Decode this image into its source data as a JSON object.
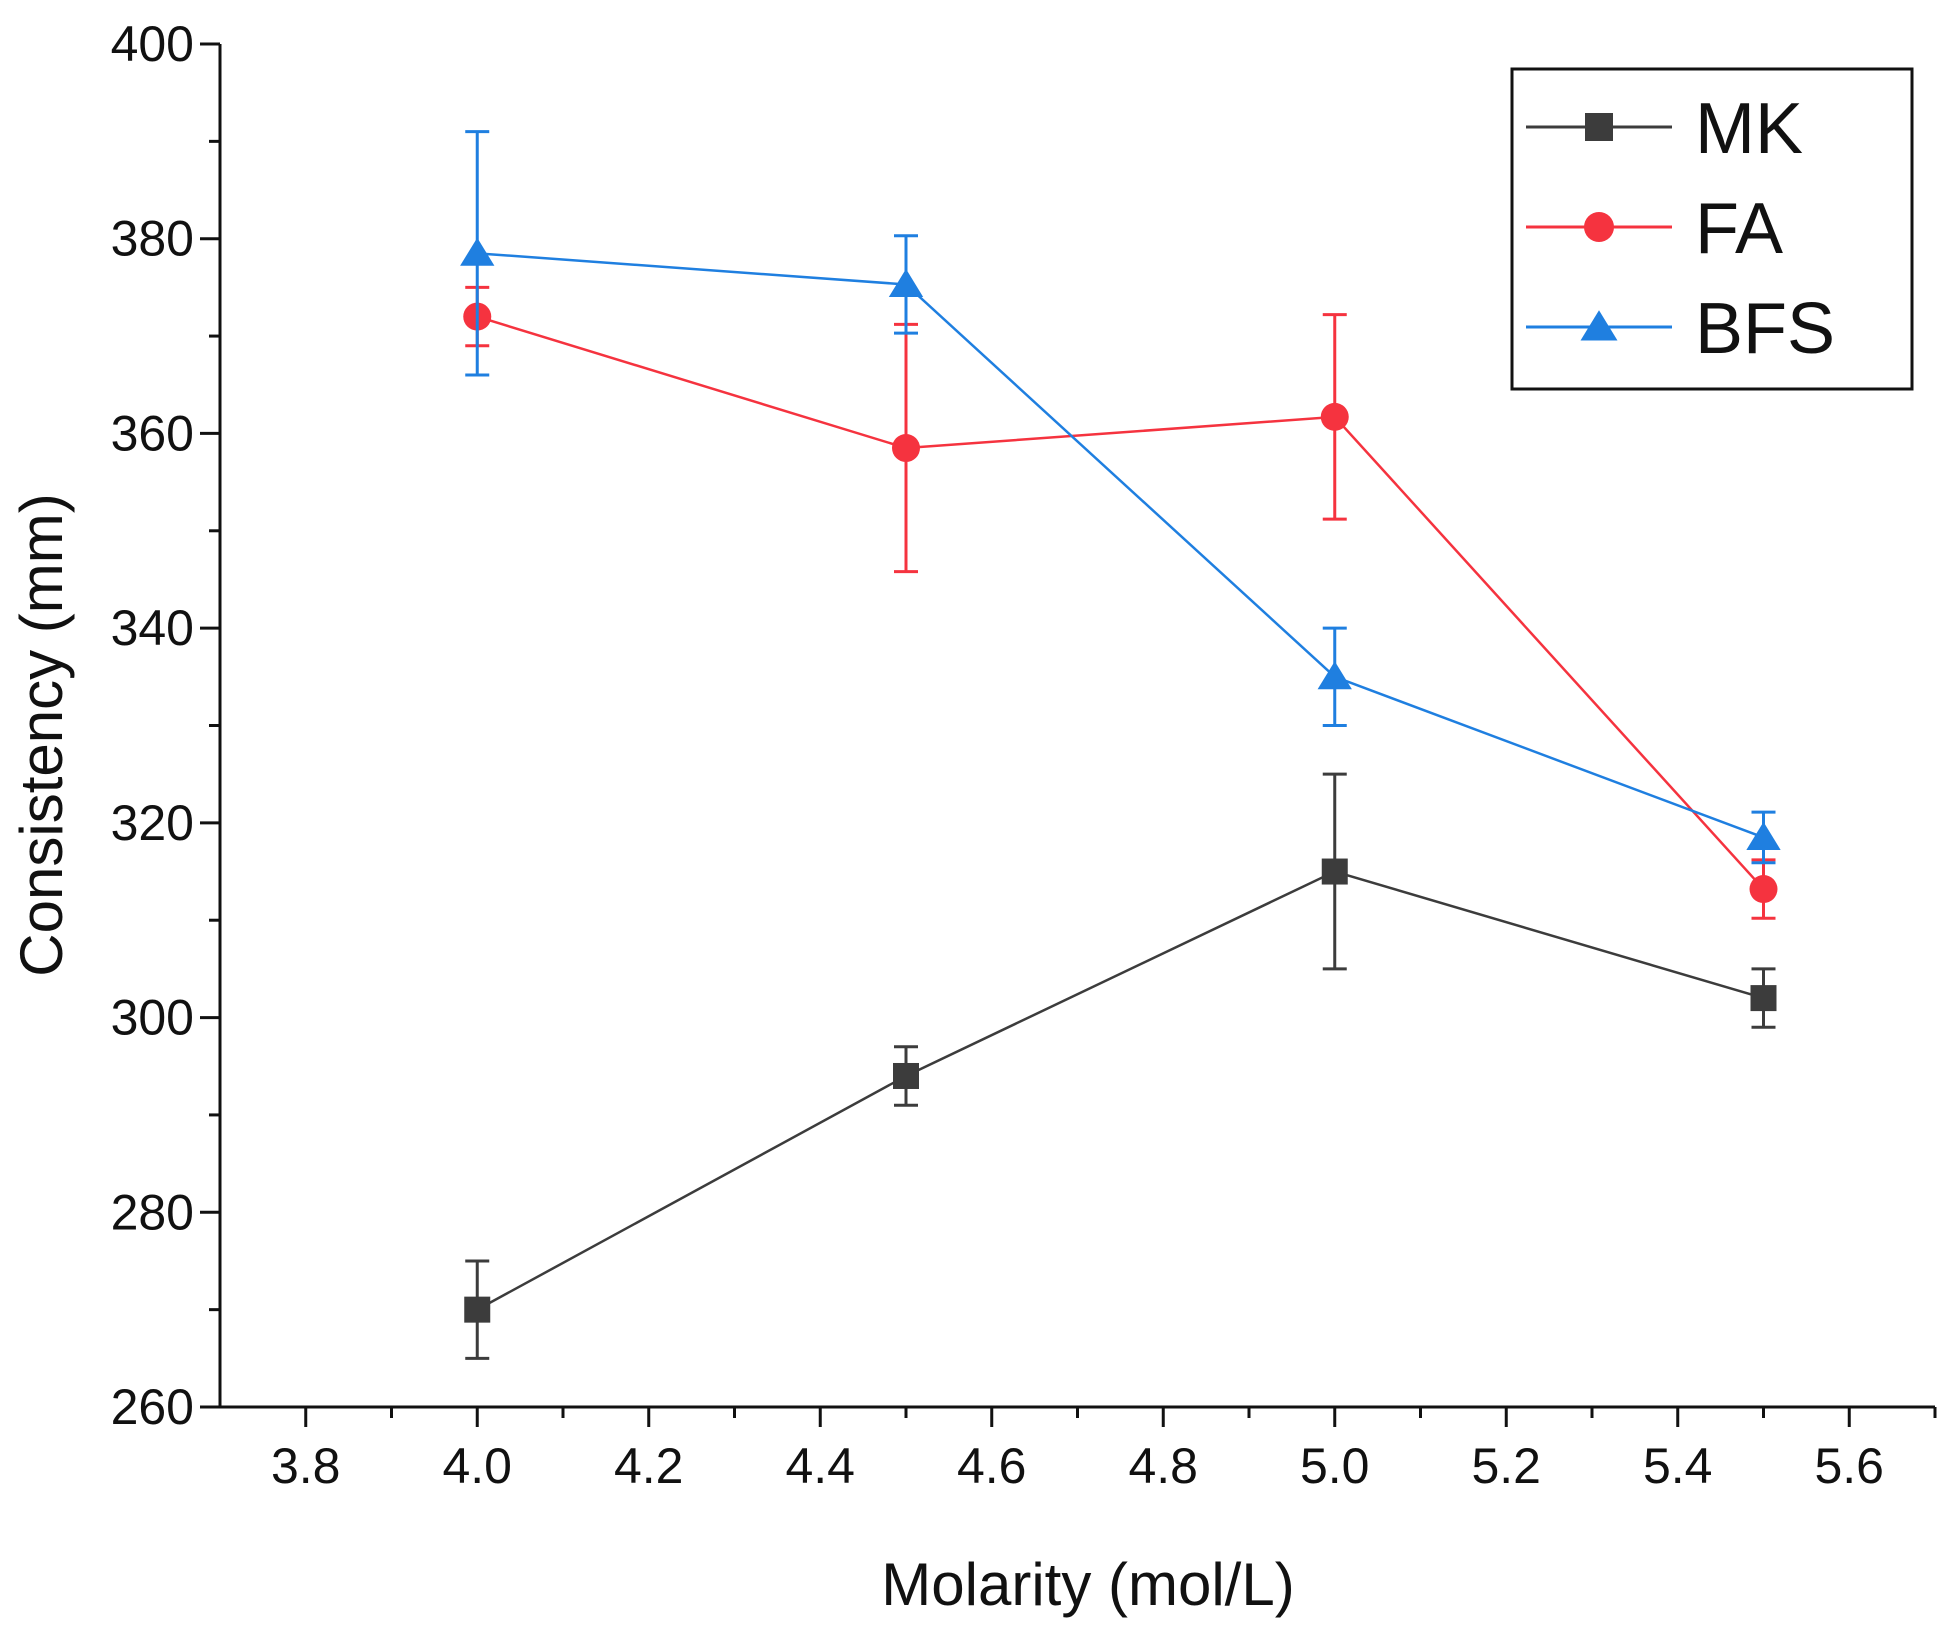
{
  "chart_data": {
    "type": "line",
    "title": "",
    "xlabel": "Molarity (mol/L)",
    "ylabel": "Consistency (mm)",
    "xlim": [
      3.7,
      5.7
    ],
    "ylim": [
      260,
      400
    ],
    "x_ticks": [
      3.8,
      4.0,
      4.2,
      4.4,
      4.6,
      4.8,
      5.0,
      5.2,
      5.4,
      5.6
    ],
    "x_tick_labels": [
      "3.8",
      "4.0",
      "4.2",
      "4.4",
      "4.6",
      "4.8",
      "5.0",
      "5.2",
      "5.4",
      "5.6"
    ],
    "y_ticks": [
      260,
      280,
      300,
      320,
      340,
      360,
      380,
      400
    ],
    "y_tick_labels": [
      "260",
      "280",
      "300",
      "320",
      "340",
      "360",
      "380",
      "400"
    ],
    "x": [
      4.0,
      4.5,
      5.0,
      5.5
    ],
    "legend_position": "top-right",
    "grid": false,
    "series": [
      {
        "name": "MK",
        "color": "#3c3c3c",
        "marker": "square",
        "values": [
          270,
          294,
          315,
          302
        ],
        "error": [
          5,
          3,
          10,
          3
        ]
      },
      {
        "name": "FA",
        "color": "#f5333f",
        "marker": "circle",
        "values": [
          372,
          358.5,
          361.7,
          313.2
        ],
        "error": [
          3,
          12.7,
          10.5,
          3
        ]
      },
      {
        "name": "BFS",
        "color": "#1f7fe0",
        "marker": "triangle",
        "values": [
          378.5,
          375.3,
          335,
          318.5
        ],
        "error": [
          12.5,
          5,
          5,
          2.6
        ]
      }
    ]
  }
}
